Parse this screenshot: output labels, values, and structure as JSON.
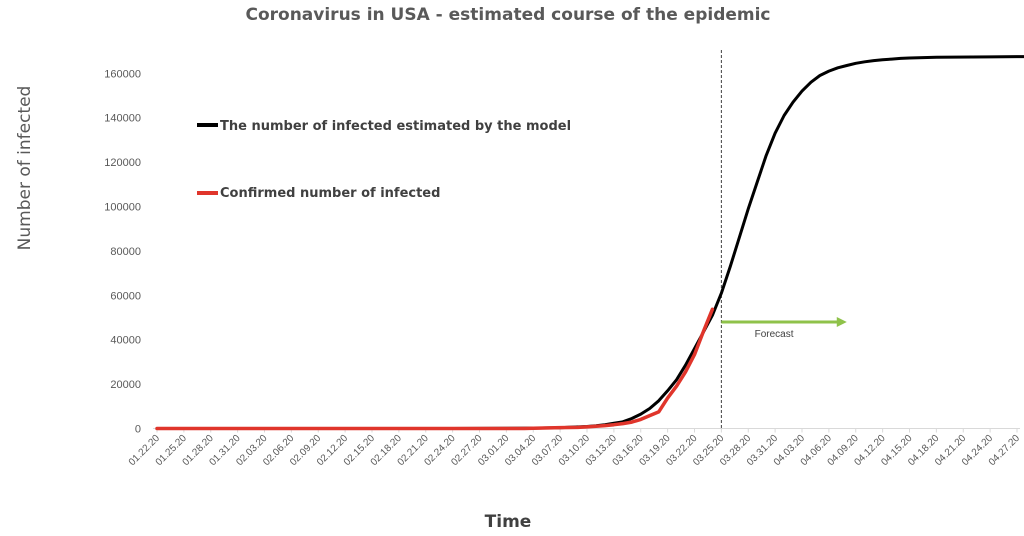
{
  "chart_data": {
    "type": "line",
    "title": "Coronavirus in USA - estimated course of the epidemic",
    "xlabel": "Time",
    "ylabel": "Number of infected",
    "ylim": [
      0,
      175000
    ],
    "yticks": [
      0,
      20000,
      40000,
      60000,
      80000,
      100000,
      120000,
      140000,
      160000
    ],
    "grid": false,
    "legend_position": "upper-left",
    "xtick_labels": [
      "01.22.20",
      "01.25.20",
      "01.28.20",
      "01.31.20",
      "02.03.20",
      "02.06.20",
      "02.09.20",
      "02.12.20",
      "02.15.20",
      "02.18.20",
      "02.21.20",
      "02.24.20",
      "02.27.20",
      "03.01.20",
      "03.04.20",
      "03.07.20",
      "03.10.20",
      "03.13.20",
      "03.16.20",
      "03.19.20",
      "03.22.20",
      "03.25.20",
      "03.28.20",
      "03.31.20",
      "04.03.20",
      "04.06.20",
      "04.09.20",
      "04.12.20",
      "04.15.20",
      "04.18.20",
      "04.21.20",
      "04.24.20",
      "04.27.20"
    ],
    "series": [
      {
        "name": "The number of infected estimated by the model",
        "color": "#000000",
        "points": [
          [
            "01.22.20",
            0
          ],
          [
            "02.24.20",
            0
          ],
          [
            "03.04.20",
            200
          ],
          [
            "03.07.20",
            300
          ],
          [
            "03.08.20",
            600
          ],
          [
            "03.09.20",
            700
          ],
          [
            "03.10.20",
            900
          ],
          [
            "03.11.20",
            1200
          ],
          [
            "03.12.20",
            1700
          ],
          [
            "03.13.20",
            2400
          ],
          [
            "03.14.20",
            3000
          ],
          [
            "03.15.20",
            4500
          ],
          [
            "03.16.20",
            6500
          ],
          [
            "03.17.20",
            9000
          ],
          [
            "03.18.20",
            12500
          ],
          [
            "03.19.20",
            17000
          ],
          [
            "03.20.20",
            22000
          ],
          [
            "03.21.20",
            28500
          ],
          [
            "03.22.20",
            36000
          ],
          [
            "03.23.20",
            43500
          ],
          [
            "03.24.20",
            51000
          ],
          [
            "03.25.20",
            61000
          ],
          [
            "03.26.20",
            73000
          ],
          [
            "03.27.20",
            86000
          ],
          [
            "03.28.20",
            99000
          ],
          [
            "03.29.20",
            111000
          ],
          [
            "03.30.20",
            123000
          ],
          [
            "03.31.20",
            133000
          ],
          [
            "04.01.20",
            141000
          ],
          [
            "04.02.20",
            147000
          ],
          [
            "04.03.20",
            152000
          ],
          [
            "04.04.20",
            156000
          ],
          [
            "04.05.20",
            159000
          ],
          [
            "04.06.20",
            161000
          ],
          [
            "04.07.20",
            162500
          ],
          [
            "04.08.20",
            163500
          ],
          [
            "04.09.20",
            164500
          ],
          [
            "04.10.20",
            165200
          ],
          [
            "04.11.20",
            165700
          ],
          [
            "04.12.20",
            166100
          ],
          [
            "04.13.20",
            166400
          ],
          [
            "04.14.20",
            166700
          ],
          [
            "04.15.20",
            166900
          ],
          [
            "04.16.20",
            167000
          ],
          [
            "04.18.20",
            167200
          ],
          [
            "04.20.20",
            167300
          ],
          [
            "04.24.20",
            167400
          ],
          [
            "04.28.20",
            167500
          ]
        ]
      },
      {
        "name": "Confirmed number of infected",
        "color": "#e0352b",
        "points": [
          [
            "01.22.20",
            0
          ],
          [
            "03.03.20",
            0
          ],
          [
            "03.04.20",
            150
          ],
          [
            "03.07.20",
            400
          ],
          [
            "03.09.20",
            500
          ],
          [
            "03.10.20",
            700
          ],
          [
            "03.11.20",
            1000
          ],
          [
            "03.12.20",
            1300
          ],
          [
            "03.13.20",
            1700
          ],
          [
            "03.14.20",
            2200
          ],
          [
            "03.15.20",
            2900
          ],
          [
            "03.16.20",
            4100
          ],
          [
            "03.17.20",
            5800
          ],
          [
            "03.18.20",
            7500
          ],
          [
            "03.19.20",
            13700
          ],
          [
            "03.20.20",
            19100
          ],
          [
            "03.21.20",
            25500
          ],
          [
            "03.22.20",
            33300
          ],
          [
            "03.23.20",
            43800
          ],
          [
            "03.24.20",
            53700
          ]
        ]
      }
    ],
    "annotations": [
      {
        "type": "vline",
        "x": "03.25.20",
        "style": "dashed",
        "color": "#404040"
      },
      {
        "type": "arrow",
        "from": "03.25.20",
        "to": "04.08.20",
        "y": 48000,
        "color": "#8fc24a",
        "label": "Forecast"
      }
    ]
  }
}
